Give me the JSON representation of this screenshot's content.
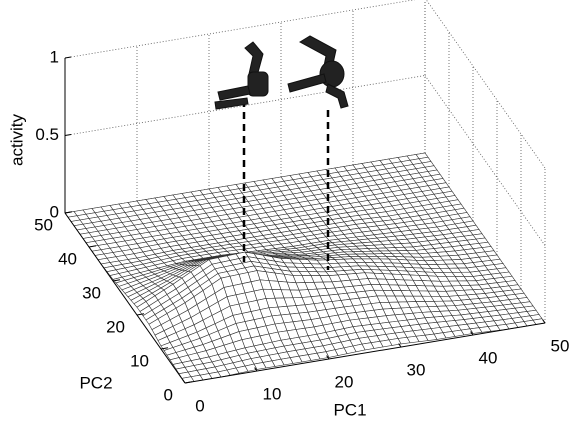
{
  "chart_data": {
    "type": "surface",
    "xlabel": "PC1",
    "ylabel": "PC2",
    "zlabel": "activity",
    "xlim": [
      0,
      50
    ],
    "ylim": [
      0,
      50
    ],
    "zlim": [
      0,
      1
    ],
    "xticks": [
      0,
      10,
      20,
      30,
      40,
      50
    ],
    "yticks": [
      0,
      10,
      20,
      30,
      40,
      50
    ],
    "zticks": [
      0,
      0.5,
      1
    ],
    "grid": true,
    "color": "#ffffff",
    "edge_color": "#333333",
    "x": [
      0,
      5,
      10,
      15,
      20,
      25,
      30,
      35,
      40,
      45,
      50
    ],
    "y": [
      0,
      5,
      10,
      15,
      20,
      25,
      30,
      35,
      40,
      45,
      50
    ],
    "z": [
      [
        0,
        0,
        0.01,
        0.01,
        0.01,
        0.02,
        0.02,
        0.01,
        0.01,
        0,
        0
      ],
      [
        0.01,
        0.02,
        0.04,
        0.05,
        0.05,
        0.06,
        0.05,
        0.04,
        0.02,
        0.01,
        0
      ],
      [
        0.02,
        0.07,
        0.14,
        0.15,
        0.13,
        0.12,
        0.11,
        0.07,
        0.03,
        0.01,
        0
      ],
      [
        0.05,
        0.15,
        0.27,
        0.28,
        0.21,
        0.17,
        0.15,
        0.1,
        0.05,
        0.01,
        0
      ],
      [
        0.05,
        0.16,
        0.28,
        0.29,
        0.21,
        0.16,
        0.13,
        0.09,
        0.04,
        0.01,
        0
      ],
      [
        0.03,
        0.09,
        0.16,
        0.16,
        0.12,
        0.09,
        0.08,
        0.05,
        0.02,
        0.01,
        0
      ],
      [
        0.01,
        0.03,
        0.05,
        0.05,
        0.04,
        0.03,
        0.03,
        0.02,
        0.01,
        0,
        0
      ],
      [
        0,
        0,
        0.01,
        0.01,
        0.01,
        0.01,
        0.01,
        0.01,
        0,
        0,
        0
      ],
      [
        0,
        0,
        0,
        0,
        0,
        0,
        0,
        0,
        0,
        0,
        0
      ],
      [
        0,
        0,
        0,
        0,
        0,
        0,
        0,
        0,
        0,
        0,
        0
      ],
      [
        0,
        0,
        0,
        0,
        0,
        0,
        0,
        0,
        0,
        0,
        0
      ]
    ]
  }
}
